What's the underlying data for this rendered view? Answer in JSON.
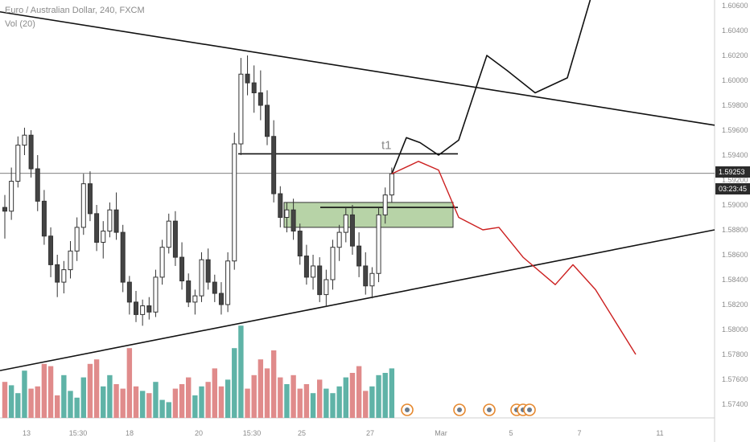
{
  "header": {
    "title": "Euro / Australian Dollar, 240, FXCM",
    "volume_label": "Vol (20)"
  },
  "current_price": "1.59253",
  "countdown": "03:23:45",
  "annotation": "t1",
  "colors": {
    "up": "#5fb3a7",
    "down": "#e08b8b",
    "up_body": "#ffffff",
    "down_body": "#444444",
    "wick": "#333333",
    "zone_fill": "#9fc48a",
    "forecast_bear": "#cc2020",
    "forecast_bull": "#111111",
    "trendline": "#111111"
  },
  "chart_data": {
    "type": "candlestick",
    "title": "Euro / Australian Dollar, 240, FXCM",
    "y_axis": {
      "ticks": [
        "1.60600",
        "1.60400",
        "1.60200",
        "1.60000",
        "1.59800",
        "1.59600",
        "1.59400",
        "1.59200",
        "1.59000",
        "1.58800",
        "1.58600",
        "1.58400",
        "1.58200",
        "1.58000",
        "1.57800",
        "1.57600",
        "1.57400"
      ],
      "range": [
        1.5733,
        1.6072
      ]
    },
    "x_axis": {
      "ticks": [
        "13",
        "15:30",
        "18",
        "20",
        "15:30",
        "25",
        "27",
        "Mar",
        "5",
        "7",
        "11"
      ]
    },
    "ohlc": [
      [
        1.5898,
        1.5908,
        1.5873,
        1.5895
      ],
      [
        1.5895,
        1.593,
        1.5888,
        1.5919
      ],
      [
        1.5919,
        1.5955,
        1.5914,
        1.5948
      ],
      [
        1.5948,
        1.5962,
        1.594,
        1.5956
      ],
      [
        1.5956,
        1.596,
        1.5922,
        1.5929
      ],
      [
        1.5929,
        1.594,
        1.5895,
        1.5903
      ],
      [
        1.5903,
        1.5912,
        1.5868,
        1.5875
      ],
      [
        1.5875,
        1.5882,
        1.5842,
        1.5852
      ],
      [
        1.5852,
        1.586,
        1.5826,
        1.5838
      ],
      [
        1.5838,
        1.5855,
        1.5829,
        1.5848
      ],
      [
        1.5848,
        1.5871,
        1.5841,
        1.5863
      ],
      [
        1.5863,
        1.589,
        1.5855,
        1.5882
      ],
      [
        1.5882,
        1.5925,
        1.5876,
        1.5917
      ],
      [
        1.5917,
        1.5927,
        1.5887,
        1.5893
      ],
      [
        1.5893,
        1.59,
        1.5863,
        1.587
      ],
      [
        1.587,
        1.5887,
        1.5857,
        1.5879
      ],
      [
        1.5879,
        1.5902,
        1.5874,
        1.5896
      ],
      [
        1.5896,
        1.591,
        1.5872,
        1.5878
      ],
      [
        1.5878,
        1.5884,
        1.583,
        1.5838
      ],
      [
        1.5838,
        1.5843,
        1.5812,
        1.5822
      ],
      [
        1.5822,
        1.5831,
        1.5806,
        1.5812
      ],
      [
        1.5812,
        1.5824,
        1.5803,
        1.5819
      ],
      [
        1.5819,
        1.5826,
        1.5808,
        1.5814
      ],
      [
        1.5814,
        1.5848,
        1.581,
        1.5842
      ],
      [
        1.5842,
        1.5872,
        1.5836,
        1.5866
      ],
      [
        1.5866,
        1.5893,
        1.5861,
        1.5887
      ],
      [
        1.5887,
        1.5895,
        1.5851,
        1.5858
      ],
      [
        1.5858,
        1.587,
        1.5832,
        1.5839
      ],
      [
        1.5839,
        1.5845,
        1.5818,
        1.5822
      ],
      [
        1.5822,
        1.5832,
        1.5812,
        1.5827
      ],
      [
        1.5827,
        1.5862,
        1.5822,
        1.5856
      ],
      [
        1.5856,
        1.5865,
        1.5832,
        1.5838
      ],
      [
        1.5838,
        1.5844,
        1.5822,
        1.5829
      ],
      [
        1.5829,
        1.5838,
        1.5812,
        1.582
      ],
      [
        1.582,
        1.5862,
        1.5814,
        1.5855
      ],
      [
        1.5855,
        1.5958,
        1.5848,
        1.5949
      ],
      [
        1.5949,
        1.6018,
        1.594,
        1.6005
      ],
      [
        1.6005,
        1.602,
        1.5988,
        1.5998
      ],
      [
        1.5998,
        1.6012,
        1.5974,
        1.599
      ],
      [
        1.599,
        1.6008,
        1.5968,
        1.598
      ],
      [
        1.598,
        1.5992,
        1.5948,
        1.5955
      ],
      [
        1.5955,
        1.5968,
        1.5902,
        1.5909
      ],
      [
        1.5909,
        1.5915,
        1.5882,
        1.589
      ],
      [
        1.589,
        1.5902,
        1.5878,
        1.5896
      ],
      [
        1.5896,
        1.5905,
        1.5872,
        1.5879
      ],
      [
        1.5879,
        1.5885,
        1.5852,
        1.5859
      ],
      [
        1.5859,
        1.5868,
        1.5836,
        1.5842
      ],
      [
        1.5842,
        1.586,
        1.5832,
        1.5851
      ],
      [
        1.5851,
        1.5858,
        1.5822,
        1.5828
      ],
      [
        1.5828,
        1.5848,
        1.5818,
        1.584
      ],
      [
        1.584,
        1.5872,
        1.5832,
        1.5866
      ],
      [
        1.5866,
        1.5884,
        1.5855,
        1.5878
      ],
      [
        1.5878,
        1.5898,
        1.587,
        1.5892
      ],
      [
        1.5892,
        1.59,
        1.586,
        1.5867
      ],
      [
        1.5867,
        1.5878,
        1.5842,
        1.5851
      ],
      [
        1.5851,
        1.5862,
        1.5828,
        1.5835
      ],
      [
        1.5835,
        1.585,
        1.5825,
        1.5845
      ],
      [
        1.5845,
        1.5898,
        1.5838,
        1.5892
      ],
      [
        1.5892,
        1.5914,
        1.5885,
        1.5908
      ],
      [
        1.5908,
        1.593,
        1.5902,
        1.5925
      ]
    ],
    "volume": [
      32,
      29,
      22,
      42,
      26,
      28,
      48,
      46,
      20,
      38,
      24,
      18,
      36,
      48,
      52,
      28,
      38,
      30,
      26,
      62,
      28,
      24,
      22,
      32,
      16,
      14,
      26,
      30,
      36,
      20,
      28,
      32,
      44,
      28,
      34,
      62,
      82,
      26,
      38,
      52,
      44,
      60,
      36,
      30,
      38,
      26,
      30,
      22,
      34,
      26,
      22,
      28,
      36,
      40,
      46,
      24,
      28,
      38,
      40,
      44
    ],
    "levels": {
      "zone_top": 1.5902,
      "zone_bottom": 1.5882,
      "t1_line": 1.5941,
      "zone_midline": 1.5898
    },
    "trendlines": [
      {
        "name": "upper",
        "from": [
          0,
          1.6055
        ],
        "to": [
          1.0,
          1.5964
        ]
      },
      {
        "name": "lower",
        "from": [
          0,
          1.5767
        ],
        "to": [
          1.0,
          1.588
        ]
      }
    ]
  }
}
